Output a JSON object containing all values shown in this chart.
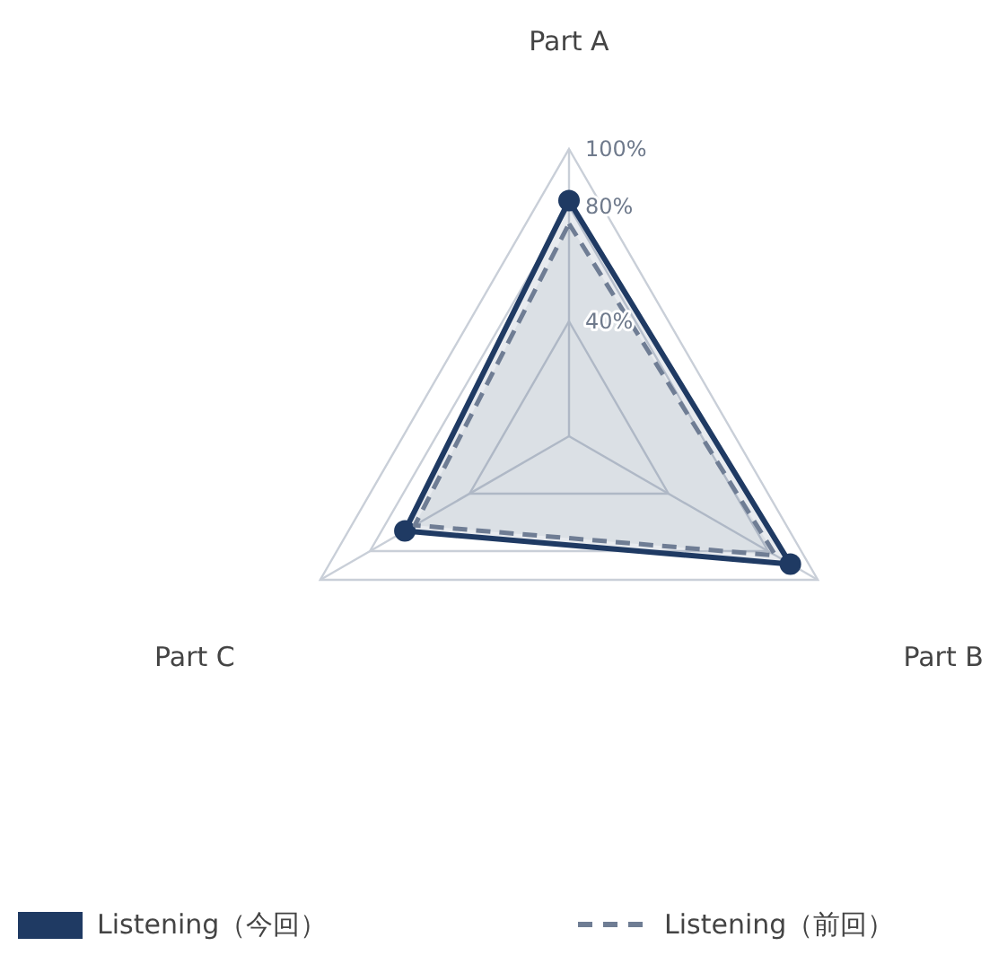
{
  "chart_data": {
    "type": "radar",
    "categories": [
      "Part A",
      "Part B",
      "Part C"
    ],
    "ylim": [
      0,
      100
    ],
    "yticks": [
      {
        "value": 40,
        "label": "40%"
      },
      {
        "value": 80,
        "label": "80%"
      },
      {
        "value": 100,
        "label": "100%"
      }
    ],
    "grid": true,
    "legend": "bottom",
    "series": [
      {
        "name": "Listening（今回）",
        "color": "#1f3a63",
        "values": [
          82,
          89,
          66
        ],
        "marker": "circle",
        "line_style": "solid"
      },
      {
        "name": "Listening（前回）",
        "color": "#6f7d94",
        "values": [
          74,
          83,
          62
        ],
        "marker": "none",
        "line_style": "dashed"
      }
    ]
  }
}
